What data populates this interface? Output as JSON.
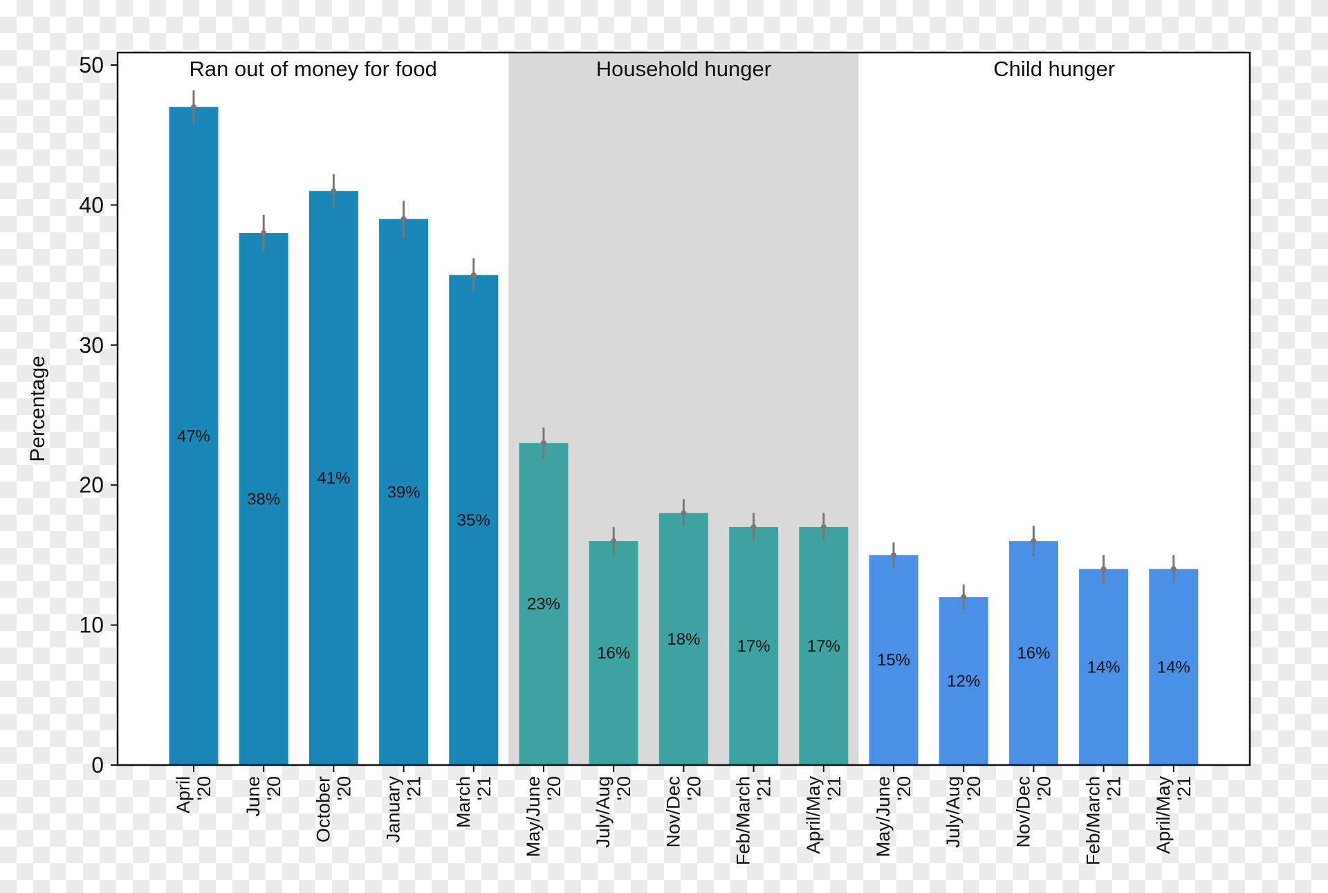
{
  "chart_data": {
    "type": "bar",
    "ylabel": "Percentage",
    "xlabel": "",
    "ylim": [
      0,
      50
    ],
    "yticks": [
      0,
      10,
      20,
      30,
      40,
      50
    ],
    "grid": false,
    "panels": [
      {
        "label": "Ran out of money for food",
        "shaded": false,
        "color": "#1b87b8"
      },
      {
        "label": "Household hunger",
        "shaded": true,
        "color": "#3ea3a0"
      },
      {
        "label": "Child hunger",
        "shaded": false,
        "color": "#4a90e6"
      }
    ],
    "shade_color": "#dadada",
    "errorbar_color": "#777777",
    "series": [
      {
        "panel": 0,
        "categories": [
          [
            "April",
            "'20"
          ],
          [
            "June",
            "'20"
          ],
          [
            "October",
            "'20"
          ],
          [
            "January",
            "'21"
          ],
          [
            "March",
            "'21"
          ]
        ],
        "values": [
          47,
          38,
          41,
          39,
          35
        ],
        "errors": [
          1.2,
          1.3,
          1.2,
          1.3,
          1.2
        ],
        "data_labels": [
          "47%",
          "38%",
          "41%",
          "39%",
          "35%"
        ]
      },
      {
        "panel": 1,
        "categories": [
          [
            "May/June",
            "'20"
          ],
          [
            "July/Aug",
            "'20"
          ],
          [
            "Nov/Dec",
            "'20"
          ],
          [
            "Feb/March",
            "'21"
          ],
          [
            "April/May",
            "'21"
          ]
        ],
        "values": [
          23,
          16,
          18,
          17,
          17
        ],
        "errors": [
          1.1,
          1.0,
          1.0,
          1.0,
          1.0
        ],
        "data_labels": [
          "23%",
          "16%",
          "18%",
          "17%",
          "17%"
        ]
      },
      {
        "panel": 2,
        "categories": [
          [
            "May/June",
            "'20"
          ],
          [
            "July/Aug",
            "'20"
          ],
          [
            "Nov/Dec",
            "'20"
          ],
          [
            "Feb/March",
            "'21"
          ],
          [
            "April/May",
            "'21"
          ]
        ],
        "values": [
          15,
          12,
          16,
          14,
          14
        ],
        "errors": [
          0.9,
          0.9,
          1.1,
          1.0,
          1.0
        ],
        "data_labels": [
          "15%",
          "12%",
          "16%",
          "14%",
          "14%"
        ]
      }
    ]
  }
}
